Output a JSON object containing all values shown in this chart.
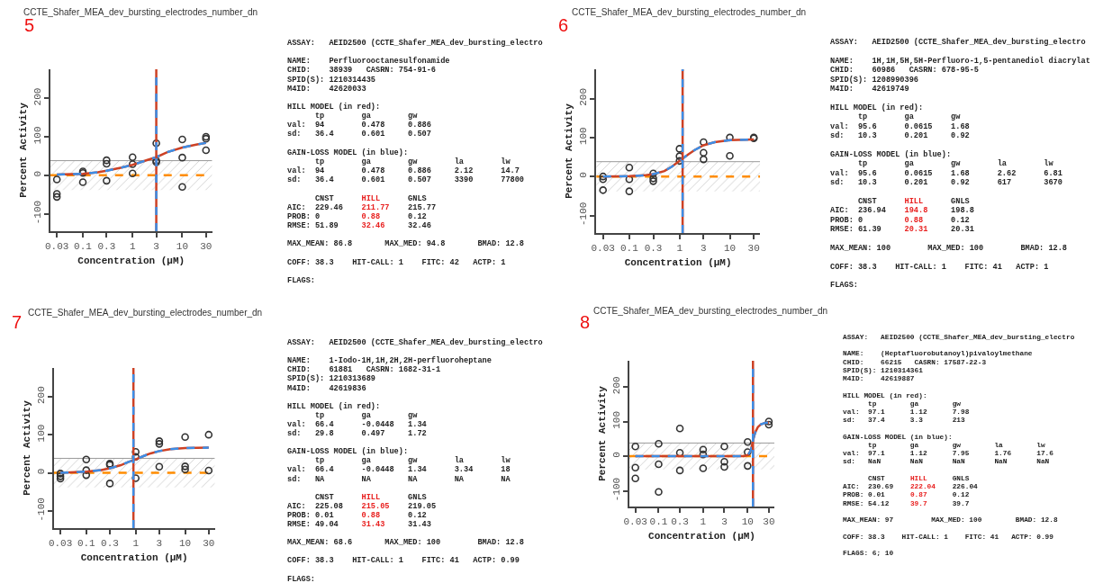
{
  "chart_data": [
    {
      "type": "scatter",
      "title": "CCTE_Shafer_MEA_dev_bursting_electrodes_number_dn",
      "annotations": [
        "5"
      ],
      "xlabel": "Concentration (µM)",
      "ylabel": "Percent Activity",
      "log": "x",
      "xlim": [
        0.022,
        40
      ],
      "ylim": [
        -145,
        275
      ],
      "xticks": [
        0.03,
        0.1,
        0.3,
        1,
        3,
        10,
        30
      ],
      "yticks": [
        -100,
        0,
        100,
        200
      ],
      "bands": [
        {
          "axis": "y",
          "from": -38,
          "to": 38,
          "color": "#999999"
        }
      ],
      "ref_lines": [
        {
          "axis": "y",
          "value": 38,
          "color": "#999999",
          "line_style": "solid"
        },
        {
          "axis": "y",
          "value": 0,
          "color": "#ff8c00",
          "line_style": "dashed"
        },
        {
          "axis": "x",
          "value": 3,
          "color": "#cc4125",
          "line_style": "solid"
        },
        {
          "axis": "x",
          "value": 3,
          "color": "#3d8ee6",
          "line_style": "dashed"
        }
      ],
      "series": [
        {
          "type": "scatter",
          "marker": "circle",
          "color": "#333333",
          "x": [
            0.03,
            0.03,
            0.03,
            0.1,
            0.1,
            0.1,
            0.3,
            0.3,
            0.3,
            1,
            1,
            1,
            3,
            3,
            3,
            10,
            10,
            10,
            30,
            30,
            30
          ],
          "values": [
            -11,
            -48,
            -56,
            10,
            6,
            -18,
            39,
            30,
            -14,
            47,
            29,
            5,
            83,
            38,
            34,
            93,
            46,
            -30,
            100,
            95,
            65
          ]
        },
        {
          "type": "line",
          "color": "#cc4125",
          "x": [
            0.03,
            0.06,
            0.1,
            0.2,
            0.3,
            0.6,
            1,
            2,
            3,
            5,
            10,
            20,
            30
          ],
          "values": [
            2,
            3,
            4,
            8,
            12,
            20,
            27,
            40,
            47,
            60,
            72,
            80,
            84
          ]
        },
        {
          "type": "line",
          "line_style": "dashed",
          "color": "#3d8ee6",
          "x": [
            0.03,
            0.06,
            0.1,
            0.2,
            0.3,
            0.6,
            1,
            2,
            3,
            5,
            10,
            20,
            30
          ],
          "values": [
            2,
            3,
            4,
            8,
            12,
            20,
            27,
            40,
            47,
            60,
            72,
            80,
            84
          ]
        }
      ]
    },
    {
      "type": "other",
      "color": "#e8201f",
      "annotations": [
        "ASSAY:   AEID2500 (CCTE_Shafer_MEA_dev_bursting_electro",
        "NAME:    Perfluorooctanesulfonamide\nCHID:    38939   CASRN: 754-91-6\nSPID(S): 1210314435\nM4ID:    42620033",
        "HILL MODEL (in red):\n      tp        ga        gw\nval:  94        0.478     0.886\nsd:   36.4      0.601     0.507",
        "GAIN-LOSS MODEL (in blue):\n      tp        ga        gw        la        lw\nval:  94        0.478     0.886     2.12      14.7\nsd:   36.4      0.601     0.507     3390      77800",
        "      CNST      \tHILL\t      GNLS\nAIC:  229.46    \t211.77\t    215.77\nPROB: 0         \t0.88\t      0.12\nRMSE: 51.89     \t32.46\t     32.46",
        "MAX_MEAN: 86.8       MAX_MED: 94.8       BMAD: 12.8",
        "COFF: 38.3    HIT-CALL: 1    FITC: 42   ACTP: 1",
        "FLAGS:"
      ]
    },
    {
      "type": "scatter",
      "title": "CCTE_Shafer_MEA_dev_bursting_electrodes_number_dn",
      "annotations": [
        "6"
      ],
      "xlabel": "Concentration (µM)",
      "ylabel": "Percent Activity",
      "log": "x",
      "xlim": [
        0.022,
        40
      ],
      "ylim": [
        -145,
        275
      ],
      "xticks": [
        0.03,
        0.1,
        0.3,
        1,
        3,
        10,
        30
      ],
      "yticks": [
        -100,
        0,
        100,
        200
      ],
      "bands": [
        {
          "axis": "y",
          "from": -38,
          "to": 38,
          "color": "#999999"
        }
      ],
      "ref_lines": [
        {
          "axis": "y",
          "value": 38,
          "color": "#999999",
          "line_style": "solid"
        },
        {
          "axis": "y",
          "value": 0,
          "color": "#ff8c00",
          "line_style": "dashed"
        },
        {
          "axis": "x",
          "value": 1.15,
          "color": "#cc4125",
          "line_style": "solid"
        },
        {
          "axis": "x",
          "value": 1.15,
          "color": "#3d8ee6",
          "line_style": "dashed"
        }
      ],
      "series": [
        {
          "type": "scatter",
          "marker": "circle",
          "color": "#333333",
          "x": [
            0.03,
            0.03,
            0.03,
            0.1,
            0.1,
            0.1,
            0.3,
            0.3,
            0.3,
            1,
            1,
            1,
            3,
            3,
            3,
            10,
            10,
            30,
            30
          ],
          "values": [
            0,
            -7,
            -35,
            23,
            -7,
            -38,
            8,
            -5,
            -12,
            71,
            52,
            40,
            88,
            61,
            44,
            100,
            53,
            100,
            98
          ]
        },
        {
          "type": "line",
          "color": "#cc4125",
          "x": [
            0.03,
            0.1,
            0.2,
            0.3,
            0.5,
            0.7,
            1,
            1.5,
            2,
            3,
            5,
            10,
            30
          ],
          "values": [
            0,
            1,
            3,
            6,
            14,
            25,
            40,
            57,
            68,
            80,
            88,
            93,
            95
          ]
        },
        {
          "type": "line",
          "line_style": "dashed",
          "color": "#3d8ee6",
          "x": [
            0.03,
            0.1,
            0.2,
            0.3,
            0.5,
            0.7,
            1,
            1.5,
            2,
            3,
            5,
            10,
            30
          ],
          "values": [
            0,
            1,
            3,
            6,
            14,
            25,
            40,
            57,
            68,
            80,
            88,
            93,
            95
          ]
        }
      ]
    },
    {
      "type": "other",
      "color": "#e8201f",
      "annotations": [
        "ASSAY:   AEID2500 (CCTE_Shafer_MEA_dev_bursting_electro",
        "NAME:    1H,1H,5H,5H-Perfluoro-1,5-pentanediol diacrylat\nCHID:    60986   CASRN: 678-95-5\nSPID(S): 1208990396\nM4ID:    42619749",
        "HILL MODEL (in red):\n      tp        ga        gw\nval:  95.6      0.0615    1.68\nsd:   10.3      0.201     0.92",
        "GAIN-LOSS MODEL (in blue):\n      tp        ga        gw        la        lw\nval:  95.6      0.0615    1.68      2.62      6.81\nsd:   10.3      0.201     0.92      617       3670",
        "      CNST      \tHILL\t      GNLS\nAIC:  236.94    \t194.8\t     198.8\nPROB: 0         \t0.88\t      0.12\nRMSE: 61.39     \t20.31\t     20.31",
        "MAX_MEAN: 100        MAX_MED: 100        BMAD: 12.8",
        "COFF: 38.3    HIT-CALL: 1    FITC: 41   ACTP: 1",
        "FLAGS:"
      ]
    },
    {
      "type": "scatter",
      "title": "CCTE_Shafer_MEA_dev_bursting_electrodes_number_dn",
      "annotations": [
        "7"
      ],
      "xlabel": "Concentration (µM)",
      "ylabel": "Percent Activity",
      "log": "x",
      "xlim": [
        0.022,
        40
      ],
      "ylim": [
        -145,
        275
      ],
      "xticks": [
        0.03,
        0.1,
        0.3,
        1,
        3,
        10,
        30
      ],
      "yticks": [
        -100,
        0,
        100,
        200
      ],
      "bands": [
        {
          "axis": "y",
          "from": -38,
          "to": 38,
          "color": "#999999"
        }
      ],
      "ref_lines": [
        {
          "axis": "y",
          "value": 38,
          "color": "#999999",
          "line_style": "solid"
        },
        {
          "axis": "y",
          "value": 0,
          "color": "#ff8c00",
          "line_style": "dashed"
        },
        {
          "axis": "x",
          "value": 0.9,
          "color": "#cc4125",
          "line_style": "solid"
        },
        {
          "axis": "x",
          "value": 0.9,
          "color": "#3d8ee6",
          "line_style": "dashed"
        }
      ],
      "series": [
        {
          "type": "scatter",
          "marker": "circle",
          "color": "#333333",
          "x": [
            0.03,
            0.03,
            0.03,
            0.1,
            0.1,
            0.1,
            0.3,
            0.3,
            0.3,
            1,
            1,
            1,
            3,
            3,
            3,
            10,
            10,
            10,
            30,
            30
          ],
          "values": [
            -2,
            -9,
            -15,
            35,
            7,
            -6,
            24,
            21,
            -28,
            55,
            42,
            -14,
            83,
            76,
            16,
            94,
            17,
            9,
            100,
            6
          ]
        },
        {
          "type": "line",
          "color": "#cc4125",
          "x": [
            0.03,
            0.1,
            0.2,
            0.3,
            0.5,
            0.7,
            1,
            1.5,
            2,
            3,
            5,
            10,
            30
          ],
          "values": [
            0,
            3,
            7,
            12,
            20,
            28,
            35,
            45,
            51,
            57,
            62,
            65,
            66
          ]
        },
        {
          "type": "line",
          "line_style": "dashed",
          "color": "#3d8ee6",
          "x": [
            0.03,
            0.1,
            0.2,
            0.3,
            0.5,
            0.7,
            1,
            1.5,
            2,
            3,
            5,
            10,
            30
          ],
          "values": [
            0,
            3,
            7,
            12,
            20,
            28,
            35,
            45,
            51,
            57,
            62,
            65,
            66
          ]
        }
      ]
    },
    {
      "type": "other",
      "color": "#e8201f",
      "annotations": [
        "ASSAY:   AEID2500 (CCTE_Shafer_MEA_dev_bursting_electro",
        "NAME:    1-Iodo-1H,1H,2H,2H-perfluoroheptane\nCHID:    61881   CASRN: 1682-31-1\nSPID(S): 1210313689\nM4ID:    42619836",
        "HILL MODEL (in red):\n      tp        ga        gw\nval:  66.4      -0.0448   1.34\nsd:   29.8      0.497     1.72",
        "GAIN-LOSS MODEL (in blue):\n      tp        ga        gw        la        lw\nval:  66.4      -0.0448   1.34      3.34      18\nsd:   NA        NA        NA        NA        NA",
        "      CNST      \tHILL\t      GNLS\nAIC:  225.08    \t215.05\t    219.05\nPROB: 0.01      \t0.88\t      0.12\nRMSE: 49.04     \t31.43\t     31.43",
        "MAX_MEAN: 68.6       MAX_MED: 100        BMAD: 12.8",
        "COFF: 38.3    HIT-CALL: 1    FITC: 41   ACTP: 0.99",
        "FLAGS:"
      ]
    },
    {
      "type": "scatter",
      "title": "CCTE_Shafer_MEA_dev_bursting_electrodes_number_dn",
      "annotations": [
        "8"
      ],
      "xlabel": "Concentration (µM)",
      "ylabel": "Percent Activity",
      "log": "x",
      "xlim": [
        0.022,
        40
      ],
      "ylim": [
        -145,
        275
      ],
      "xticks": [
        0.03,
        0.1,
        0.3,
        1,
        3,
        10,
        30
      ],
      "yticks": [
        -100,
        0,
        100,
        200
      ],
      "bands": [
        {
          "axis": "y",
          "from": -38,
          "to": 38,
          "color": "#999999"
        }
      ],
      "ref_lines": [
        {
          "axis": "y",
          "value": 38,
          "color": "#999999",
          "line_style": "solid"
        },
        {
          "axis": "y",
          "value": 0,
          "color": "#ff8c00",
          "line_style": "dashed"
        },
        {
          "axis": "x",
          "value": 13.2,
          "color": "#cc4125",
          "line_style": "solid"
        },
        {
          "axis": "x",
          "value": 13.2,
          "color": "#3d8ee6",
          "line_style": "dashed"
        }
      ],
      "series": [
        {
          "type": "scatter",
          "marker": "circle",
          "color": "#333333",
          "x": [
            0.03,
            0.03,
            0.03,
            0.1,
            0.1,
            0.1,
            0.3,
            0.3,
            0.3,
            1,
            1,
            1,
            3,
            3,
            3,
            10,
            10,
            10,
            30,
            30
          ],
          "values": [
            28,
            -33,
            -64,
            36,
            -23,
            -103,
            80,
            10,
            -41,
            19,
            5,
            -35,
            28,
            -16,
            -31,
            41,
            12,
            -28,
            100,
            91
          ]
        },
        {
          "type": "line",
          "color": "#cc4125",
          "x": [
            0.03,
            1,
            8,
            10,
            11,
            12,
            13.2,
            14,
            15,
            17,
            20,
            25,
            30
          ],
          "values": [
            0,
            0,
            0,
            3,
            10,
            20,
            45,
            58,
            70,
            84,
            92,
            96,
            97
          ]
        },
        {
          "type": "line",
          "line_style": "dashed",
          "color": "#3d8ee6",
          "x": [
            0.03,
            1,
            8,
            10,
            11,
            12,
            13.2,
            14,
            15,
            17,
            20,
            25,
            30
          ],
          "values": [
            0,
            0,
            0,
            3,
            10,
            20,
            45,
            58,
            70,
            84,
            92,
            96,
            97
          ]
        }
      ]
    },
    {
      "type": "other",
      "color": "#e8201f",
      "annotations": [
        "ASSAY:   AEID2500 (CCTE_Shafer_MEA_dev_bursting_electro",
        "NAME:    (Heptafluorobutanoyl)pivaloylmethane\nCHID:    66215   CASRN: 17587-22-3\nSPID(S): 1210314361\nM4ID:    42619887",
        "HILL MODEL (in red):\n      tp        ga        gw\nval:  97.1      1.12      7.98\nsd:   37.4      3.3       213",
        "GAIN-LOSS MODEL (in blue):\n      tp        ga        gw        la        lw\nval:  97.1      1.12      7.95      1.76      17.6\nsd:   NaN       NaN       NaN       NaN       NaN",
        "      CNST      \tHILL\t      GNLS\nAIC:  230.69    \t222.04\t    226.04\nPROB: 0.01      \t0.87\t      0.12\nRMSE: 54.12     \t39.7\t      39.7",
        "MAX_MEAN: 97         MAX_MED: 100        BMAD: 12.8",
        "COFF: 38.3    HIT-CALL: 1    FITC: 41   ACTP: 0.99",
        "FLAGS: 6; 10"
      ]
    }
  ]
}
